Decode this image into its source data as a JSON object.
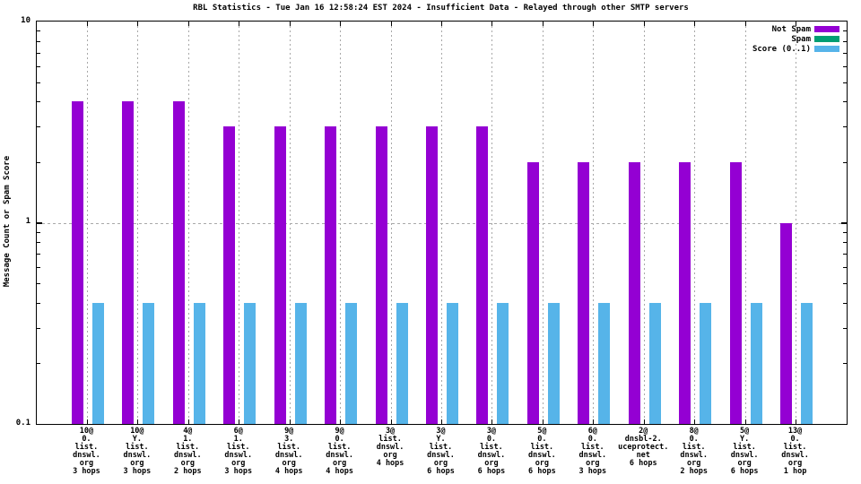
{
  "title": "RBL Statistics - Tue Jan 16 12:58:24 EST 2024 - Insufficient Data - Relayed through other SMTP servers",
  "y_axis": {
    "label": "Message Count or Spam Score",
    "ticks": [
      {
        "value": 10,
        "label": "10"
      },
      {
        "value": 1,
        "label": "1"
      },
      {
        "value": 0.1,
        "label": "0.1"
      }
    ]
  },
  "legend": {
    "position": "top-right",
    "entries": [
      {
        "label": "Not Spam",
        "color": "#9400d3"
      },
      {
        "label": "Spam",
        "color": "#009e73"
      },
      {
        "label": "Score (0..1)",
        "color": "#56b4e9"
      }
    ]
  },
  "colors": {
    "not_spam": "#9400d3",
    "spam": "#009e73",
    "score": "#56b4e9",
    "grid": "#a8a8a8"
  },
  "chart_data": {
    "type": "bar",
    "y_scale": "log",
    "ylim": [
      0.1,
      10
    ],
    "grid": true,
    "title": "RBL Statistics - Tue Jan 16 12:58:24 EST 2024 - Insufficient Data - Relayed through other SMTP servers",
    "ylabel": "Message Count or Spam Score",
    "xlabel": "",
    "legend_position": "top-right",
    "categories": [
      [
        "10@",
        "0.",
        "list.",
        "dnswl.",
        "org",
        "3 hops"
      ],
      [
        "10@",
        "Y.",
        "list.",
        "dnswl.",
        "org",
        "3 hops"
      ],
      [
        "4@",
        "1.",
        "list.",
        "dnswl.",
        "org",
        "2 hops"
      ],
      [
        "6@",
        "1.",
        "list.",
        "dnswl.",
        "org",
        "3 hops"
      ],
      [
        "9@",
        "3.",
        "list.",
        "dnswl.",
        "org",
        "4 hops"
      ],
      [
        "9@",
        "0.",
        "list.",
        "dnswl.",
        "org",
        "4 hops"
      ],
      [
        "3@",
        "list.",
        "dnswl.",
        "org",
        "4 hops"
      ],
      [
        "3@",
        "Y.",
        "list.",
        "dnswl.",
        "org",
        "6 hops"
      ],
      [
        "3@",
        "0.",
        "list.",
        "dnswl.",
        "org",
        "6 hops"
      ],
      [
        "5@",
        "0.",
        "list.",
        "dnswl.",
        "org",
        "6 hops"
      ],
      [
        "6@",
        "0.",
        "list.",
        "dnswl.",
        "org",
        "3 hops"
      ],
      [
        "2@",
        "dnsbl-2.",
        "uceprotect.",
        "net",
        "6 hops"
      ],
      [
        "8@",
        "0.",
        "list.",
        "dnswl.",
        "org",
        "2 hops"
      ],
      [
        "5@",
        "Y.",
        "list.",
        "dnswl.",
        "org",
        "6 hops"
      ],
      [
        "13@",
        "0.",
        "list.",
        "dnswl.",
        "org",
        "1 hop"
      ]
    ],
    "series": [
      {
        "name": "Not Spam",
        "color": "#9400d3",
        "values": [
          4,
          4,
          4,
          3,
          3,
          3,
          3,
          3,
          3,
          2,
          2,
          2,
          2,
          2,
          1
        ]
      },
      {
        "name": "Spam",
        "color": "#009e73",
        "values": [
          0,
          0,
          0,
          0,
          0,
          0,
          0,
          0,
          0,
          0,
          0,
          0,
          0,
          0,
          0
        ]
      },
      {
        "name": "Score (0..1)",
        "color": "#56b4e9",
        "values": [
          0.4,
          0.4,
          0.4,
          0.4,
          0.4,
          0.4,
          0.4,
          0.4,
          0.4,
          0.4,
          0.4,
          0.4,
          0.4,
          0.4,
          0.4
        ]
      }
    ]
  }
}
